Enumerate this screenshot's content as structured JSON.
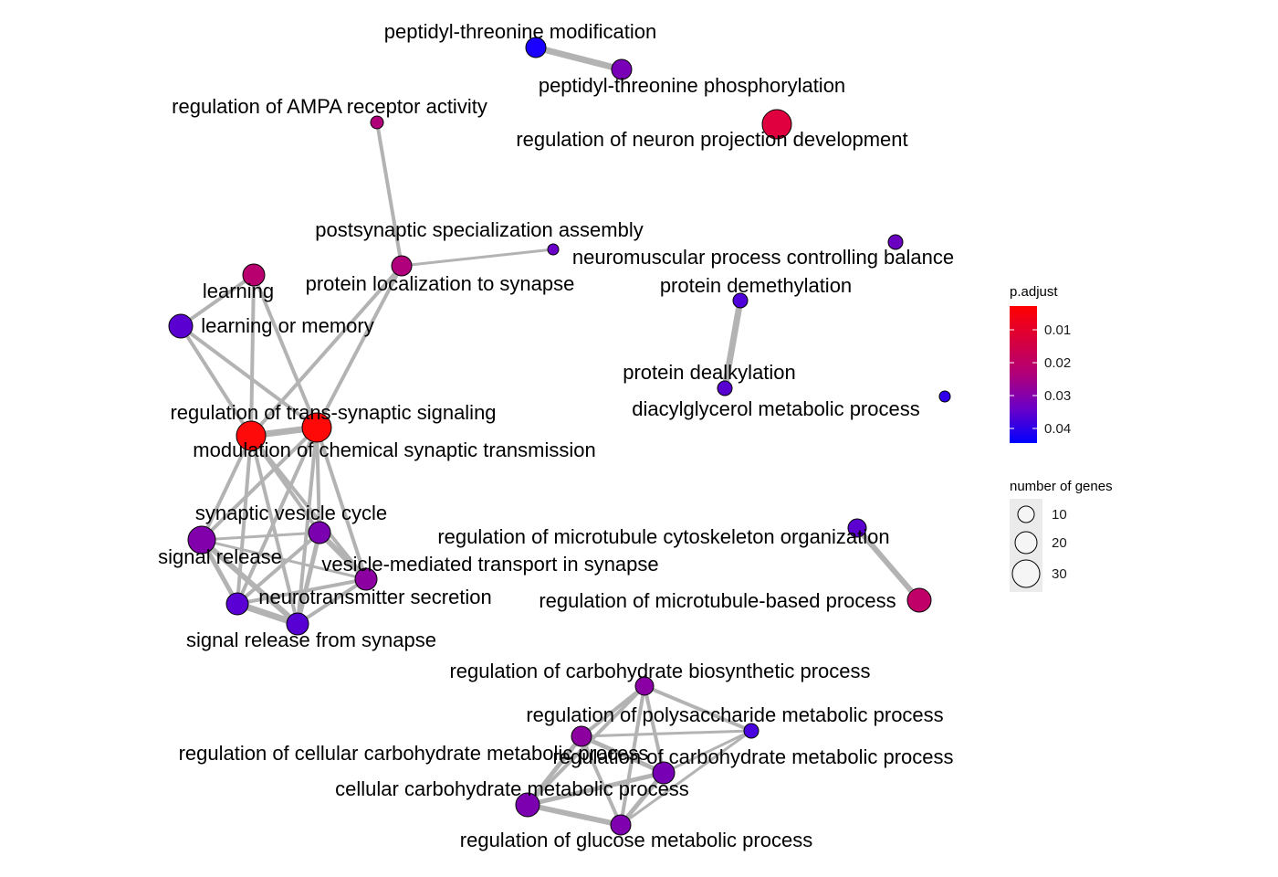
{
  "nodes": [
    {
      "id": "ptm",
      "label": "peptidyl-threonine modification",
      "color": "#1a00ff"
    },
    {
      "id": "ptp",
      "label": "peptidyl-threonine phosphorylation",
      "color": "#7a00b8"
    },
    {
      "id": "ampa",
      "label": "regulation of AMPA receptor activity",
      "color": "#b0007a"
    },
    {
      "id": "rnpd",
      "label": "regulation of neuron projection development",
      "color": "#e00040"
    },
    {
      "id": "psa",
      "label": "postsynaptic specialization assembly",
      "color": "#6a00c8"
    },
    {
      "id": "nmb",
      "label": "neuromuscular process controlling balance",
      "color": "#6a00c0"
    },
    {
      "id": "pls",
      "label": "protein localization to synapse",
      "color": "#b0007c"
    },
    {
      "id": "learn",
      "label": "learning",
      "color": "#b8006e"
    },
    {
      "id": "pdm",
      "label": "protein demethylation",
      "color": "#5000d8"
    },
    {
      "id": "lom",
      "label": "learning or memory",
      "color": "#5a00d0"
    },
    {
      "id": "pdk",
      "label": "protein dealkylation",
      "color": "#5800d0"
    },
    {
      "id": "dag",
      "label": "diacylglycerol metabolic process",
      "color": "#3000ee"
    },
    {
      "id": "rtss",
      "label": "regulation of trans-synaptic signaling",
      "color": "#ff0a0a"
    },
    {
      "id": "mcst",
      "label": "modulation of chemical synaptic transmission",
      "color": "#ff0808"
    },
    {
      "id": "svc",
      "label": "synaptic vesicle cycle",
      "color": "#7a00b0"
    },
    {
      "id": "sigr",
      "label": "signal release",
      "color": "#8200ac"
    },
    {
      "id": "vmt",
      "label": "vesicle-mediated transport in synapse",
      "color": "#8c00a2"
    },
    {
      "id": "rmco",
      "label": "regulation of microtubule cytoskeleton organization",
      "color": "#5c00d0"
    },
    {
      "id": "nts",
      "label": "neurotransmitter secretion",
      "color": "#5a00d4"
    },
    {
      "id": "rmbp",
      "label": "regulation of microtubule-based process",
      "color": "#c00068"
    },
    {
      "id": "srs",
      "label": "signal release from synapse",
      "color": "#5800d4"
    },
    {
      "id": "rcbp",
      "label": "regulation of carbohydrate biosynthetic process",
      "color": "#8a00a4"
    },
    {
      "id": "rpmp",
      "label": "regulation of polysaccharide metabolic process",
      "color": "#4a00de"
    },
    {
      "id": "rccmp",
      "label": "regulation of cellular carbohydrate metabolic process",
      "color": "#8c00a0"
    },
    {
      "id": "rcmp",
      "label": "regulation of carbohydrate metabolic process",
      "color": "#7800b4"
    },
    {
      "id": "ccmp",
      "label": "cellular carbohydrate metabolic process",
      "color": "#7c00b0"
    },
    {
      "id": "rgmp",
      "label": "regulation of glucose metabolic process",
      "color": "#7e00ae"
    }
  ],
  "legend": {
    "color_title": "p.adjust",
    "color_ticks": [
      "0.01",
      "0.02",
      "0.03",
      "0.04"
    ],
    "color_scale": {
      "low": "#ff0000",
      "high": "#0000ff"
    },
    "size_title": "number of genes",
    "size_ticks": [
      "10",
      "20",
      "30"
    ]
  },
  "colors": {
    "edge": "#b3b3b3",
    "background": "#ffffff",
    "legend_key_bg": "#ebebeb"
  }
}
